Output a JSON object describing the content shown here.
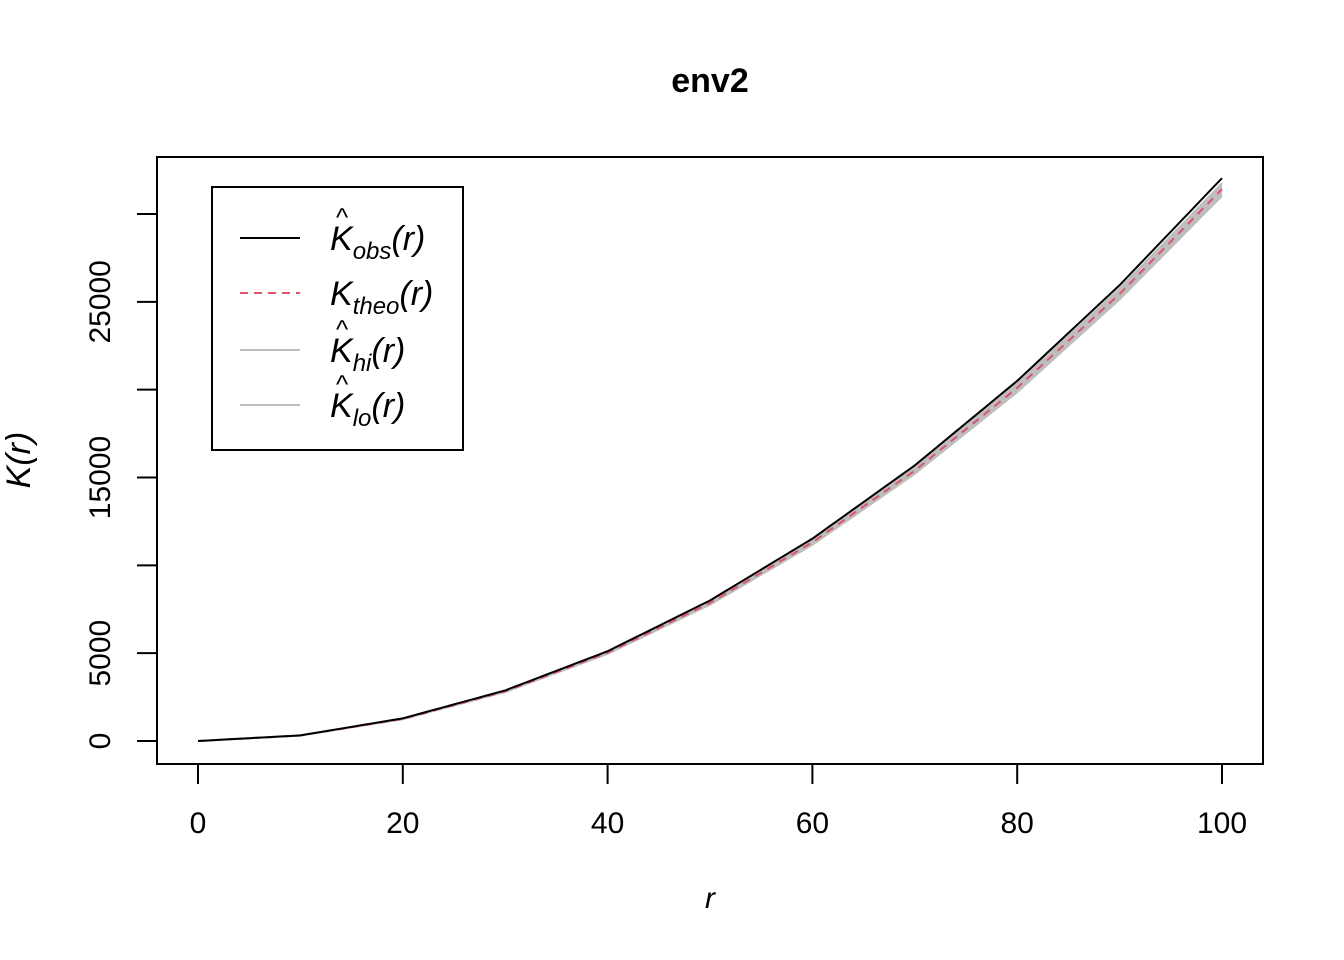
{
  "chart_data": {
    "type": "line",
    "title": "env2",
    "xlabel": "r",
    "ylabel": "K(r)",
    "xlim": [
      0,
      100
    ],
    "ylim": [
      0,
      30000
    ],
    "x_ticks": [
      0,
      20,
      40,
      60,
      80,
      100
    ],
    "y_ticks": [
      0,
      5000,
      10000,
      15000,
      20000,
      25000,
      30000
    ],
    "y_tick_labels": [
      "0",
      "5000",
      "",
      "15000",
      "",
      "25000",
      ""
    ],
    "x_tick_labels": [
      "0",
      "20",
      "40",
      "60",
      "80",
      "100"
    ],
    "grid": false,
    "legend_position": "top-left",
    "x": [
      0,
      10,
      20,
      30,
      40,
      50,
      60,
      70,
      80,
      90,
      100
    ],
    "series": [
      {
        "name": "K̂obs(r)",
        "legend": {
          "base": "K",
          "hat": true,
          "sub": "obs",
          "arg": "(r)"
        },
        "color": "#000000",
        "style": "solid",
        "values": [
          0,
          320,
          1290,
          2880,
          5110,
          8000,
          11520,
          15690,
          20500,
          25950,
          32040
        ]
      },
      {
        "name": "Ktheo(r)",
        "legend": {
          "base": "K",
          "hat": false,
          "sub": "theo",
          "arg": "(r)"
        },
        "color": "#DF536B",
        "style": "dashed",
        "values": [
          0,
          314,
          1257,
          2827,
          5027,
          7854,
          11310,
          15394,
          20106,
          25447,
          31416
        ]
      },
      {
        "name": "K̂hi(r)",
        "legend": {
          "base": "K",
          "hat": true,
          "sub": "hi",
          "arg": "(r)"
        },
        "color": "#BEBEBE",
        "style": "solid",
        "values": [
          0,
          318,
          1280,
          2860,
          5080,
          7950,
          11440,
          15580,
          20350,
          25750,
          31750
        ]
      },
      {
        "name": "K̂lo(r)",
        "legend": {
          "base": "K",
          "hat": true,
          "sub": "lo",
          "arg": "(r)"
        },
        "color": "#BEBEBE",
        "style": "solid",
        "values": [
          0,
          308,
          1240,
          2790,
          4960,
          7760,
          11170,
          15210,
          19860,
          25140,
          31030
        ]
      }
    ]
  }
}
